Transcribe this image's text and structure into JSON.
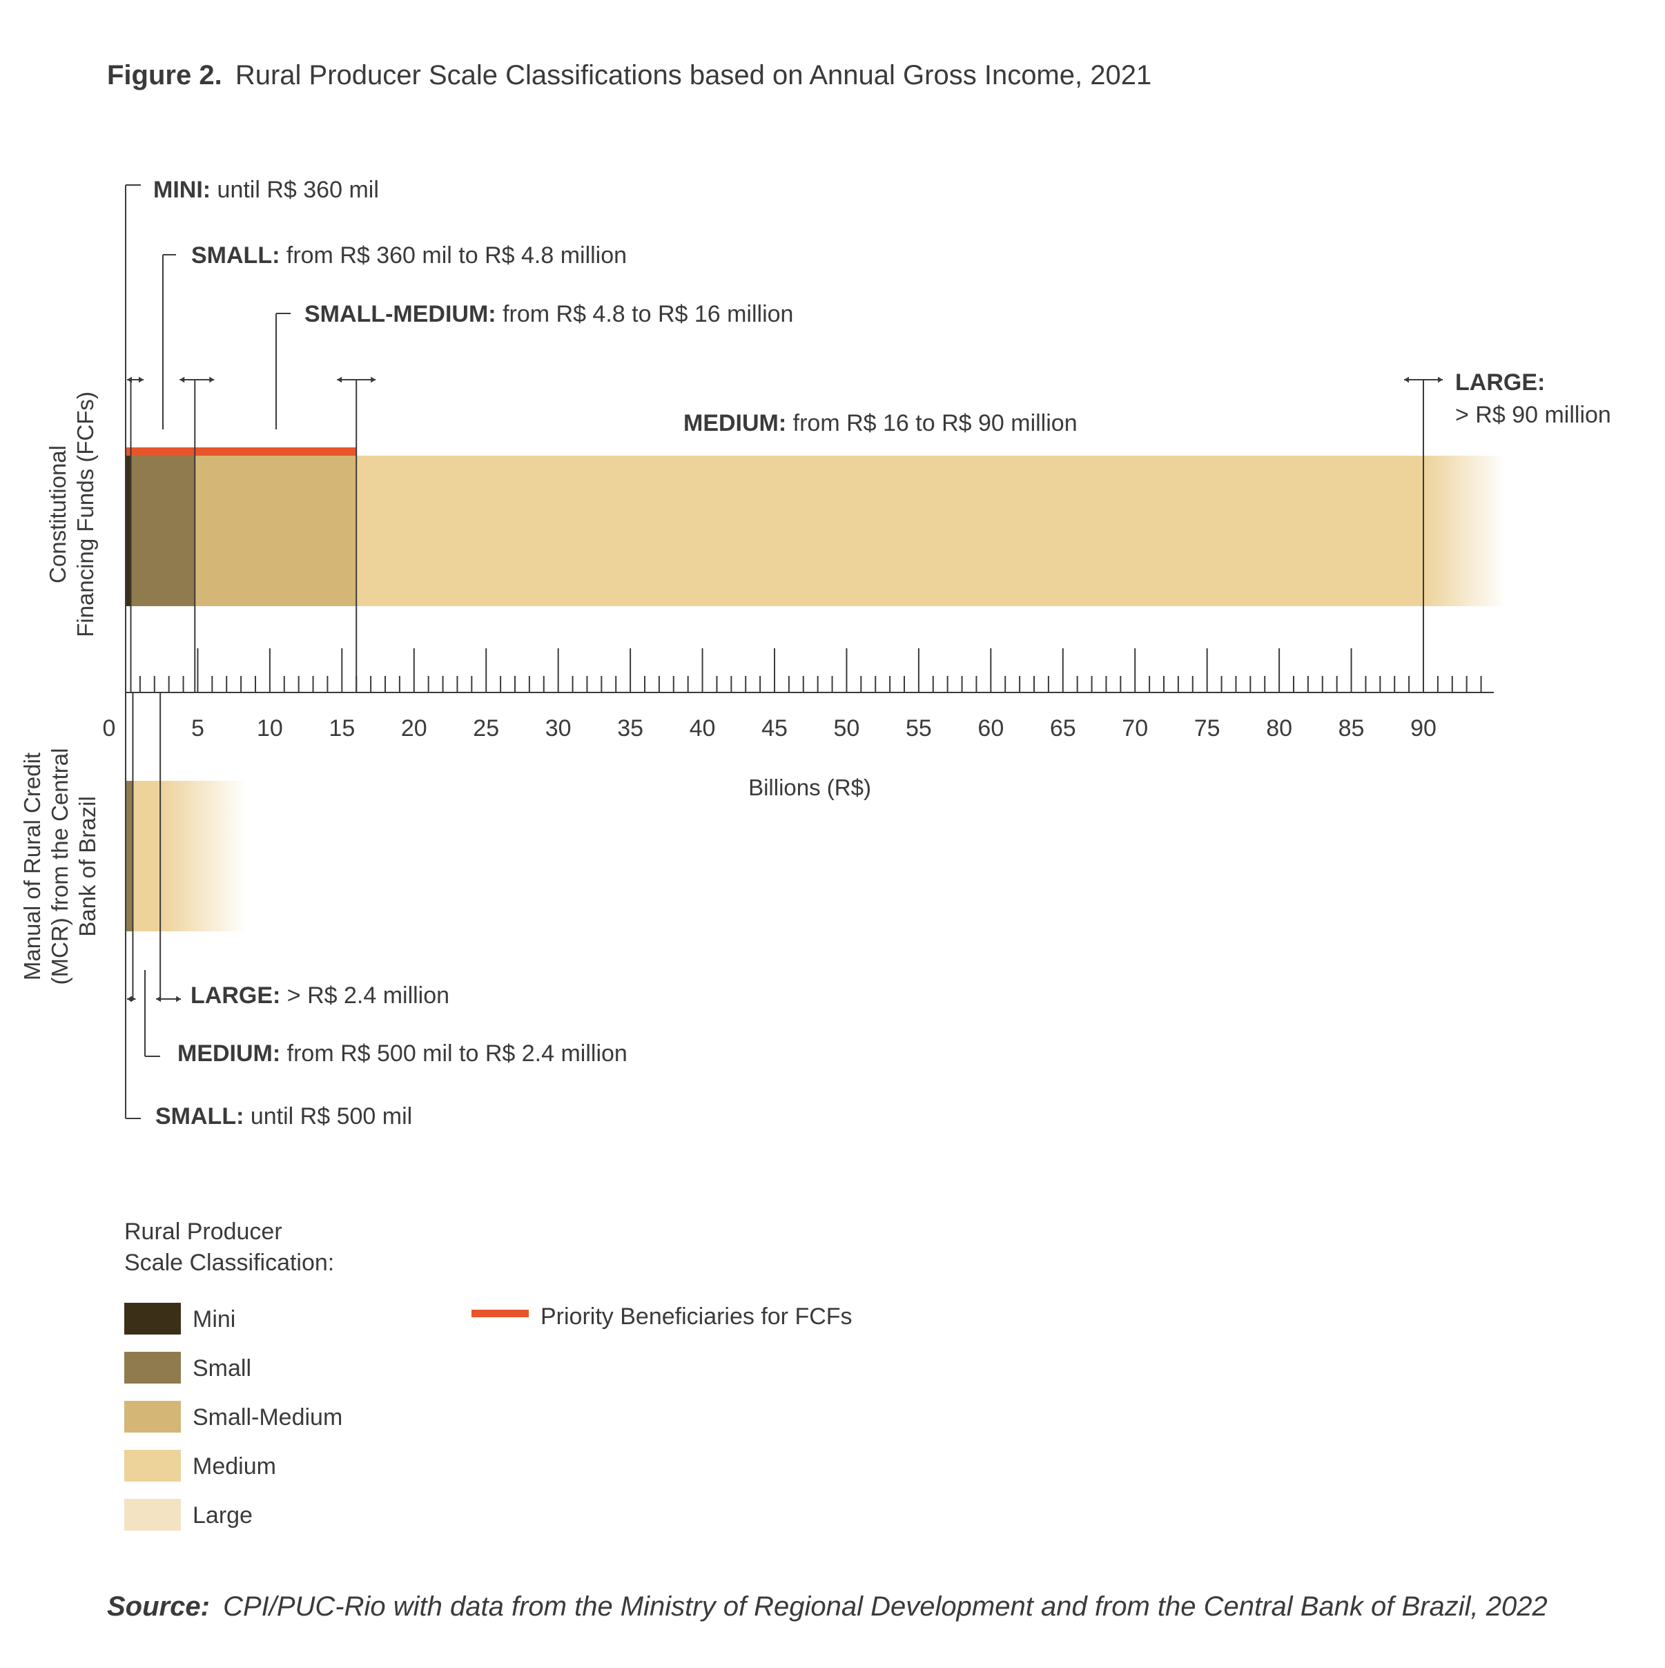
{
  "figure_label": "Figure 2.",
  "title": "Rural Producer Scale Classifications based on Annual Gross Income, 2021",
  "source_label": "Source:",
  "source_text": "CPI/PUC-Rio with data from the Ministry of Regional Development and from the Central Bank of Brazil, 2022",
  "colors": {
    "mini": "#3b2f17",
    "small": "#8f7b4e",
    "small_medium": "#d4b676",
    "medium": "#edd29a",
    "large": "#f3e3c2",
    "priority": "#e8552b",
    "ink": "#3a3a3a"
  },
  "chart_data": {
    "type": "bar",
    "orientation": "horizontal-ranges",
    "xlabel": "Billions (R$)",
    "xlim": [
      0,
      95
    ],
    "xticks": [
      0,
      5,
      10,
      15,
      20,
      25,
      30,
      35,
      40,
      45,
      50,
      55,
      60,
      65,
      70,
      75,
      80,
      85,
      90
    ],
    "rows": [
      {
        "label_line1": "Constitutional",
        "label_line2": "Financing Funds  (FCFs)",
        "segments": [
          {
            "class": "mini",
            "from": 0,
            "to": 0.36
          },
          {
            "class": "small",
            "from": 0.36,
            "to": 4.8
          },
          {
            "class": "small_medium",
            "from": 4.8,
            "to": 16
          },
          {
            "class": "medium",
            "from": 16,
            "to": 90
          },
          {
            "class": "large",
            "from": 90,
            "to": null
          }
        ],
        "priority_range": [
          0,
          16
        ],
        "annotations": [
          {
            "bold": "MINI:",
            "text": " until R$ 360 mil"
          },
          {
            "bold": "SMALL:",
            "text": " from R$ 360 mil to R$ 4.8 million"
          },
          {
            "bold": "SMALL-MEDIUM:",
            "text": " from R$ 4.8 to R$ 16 million"
          },
          {
            "bold": "MEDIUM:",
            "text": " from R$ 16 to R$ 90 million"
          },
          {
            "bold": "LARGE:",
            "text": "> R$ 90 million"
          }
        ]
      },
      {
        "label_line1": "Manual of Rural Credit",
        "label_line2": "(MCR) from the Central",
        "label_line3": "Bank of Brazil",
        "segments": [
          {
            "class": "small",
            "from": 0,
            "to": 0.5
          },
          {
            "class": "medium",
            "from": 0.5,
            "to": 2.4
          },
          {
            "class": "large",
            "from": 2.4,
            "to": null
          }
        ],
        "annotations": [
          {
            "bold": "LARGE:",
            "text": " > R$ 2.4 million"
          },
          {
            "bold": "MEDIUM:",
            "text": " from R$ 500 mil to R$ 2.4 million"
          },
          {
            "bold": "SMALL:",
            "text": " until R$ 500 mil"
          }
        ]
      }
    ],
    "legend": {
      "title_line1": "Rural Producer",
      "title_line2": "Scale Classification:",
      "items": [
        {
          "class": "mini",
          "label": "Mini"
        },
        {
          "class": "small",
          "label": "Small"
        },
        {
          "class": "small_medium",
          "label": "Small-Medium"
        },
        {
          "class": "medium",
          "label": "Medium"
        },
        {
          "class": "large",
          "label": "Large"
        }
      ],
      "priority_label": "Priority Beneficiaries for FCFs"
    }
  }
}
